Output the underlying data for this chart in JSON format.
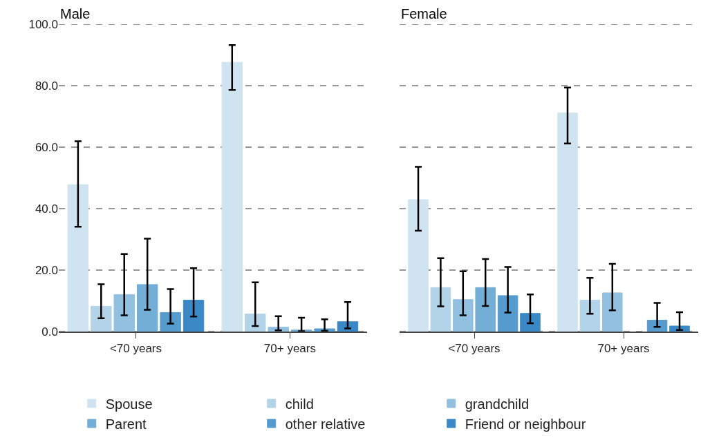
{
  "chart_data": [
    {
      "type": "bar",
      "title": "Male",
      "categories": [
        "<70 years",
        "70+ years"
      ],
      "ylim": [
        0,
        100
      ],
      "yticks": [
        {
          "value": 0,
          "label": "0.0"
        },
        {
          "value": 20,
          "label": "20.0"
        },
        {
          "value": 40,
          "label": "40.0"
        },
        {
          "value": 60,
          "label": "60.0"
        },
        {
          "value": 80,
          "label": "80.0"
        },
        {
          "value": 100,
          "label": "100.0"
        }
      ],
      "grid": "y",
      "legend": "bottom",
      "series": [
        {
          "name": "Spouse",
          "color": "#d0e3f0",
          "values": [
            47.8,
            87.6
          ],
          "errors": [
            [
              34.1,
              61.9
            ],
            [
              78.6,
              93.2
            ]
          ]
        },
        {
          "name": "child",
          "color": "#b3d3e9",
          "values": [
            8.2,
            5.7
          ],
          "errors": [
            [
              4.3,
              15.4
            ],
            [
              1.8,
              16.0
            ]
          ]
        },
        {
          "name": "grandchild",
          "color": "#91c0e0",
          "values": [
            12.0,
            1.4
          ],
          "errors": [
            [
              5.3,
              25.2
            ],
            [
              0.4,
              5.0
            ]
          ]
        },
        {
          "name": "Parent",
          "color": "#73aed6",
          "values": [
            15.3,
            0.5
          ],
          "errors": [
            [
              7.1,
              30.2
            ],
            [
              0.1,
              4.5
            ]
          ]
        },
        {
          "name": "other relative",
          "color": "#569bcd",
          "values": [
            6.2,
            0.9
          ],
          "errors": [
            [
              2.6,
              13.8
            ],
            [
              0.2,
              4.0
            ]
          ]
        },
        {
          "name": "Friend or neighbour",
          "color": "#3a88c5",
          "values": [
            10.2,
            3.2
          ],
          "errors": [
            [
              4.9,
              20.6
            ],
            [
              1.0,
              9.6
            ]
          ]
        }
      ]
    },
    {
      "type": "bar",
      "title": "Female",
      "categories": [
        "<70 years",
        "70+ years"
      ],
      "ylim": [
        0,
        100
      ],
      "yticks": [
        0,
        20,
        40,
        60,
        80,
        100
      ],
      "grid": "y",
      "tick_labels": "x",
      "series": [
        {
          "color": "#d0e3f0",
          "values": [
            42.9,
            71.1
          ],
          "errors": [
            [
              32.8,
              53.6
            ],
            [
              61.2,
              79.4
            ]
          ]
        },
        {
          "color": "#b3d3e9",
          "values": [
            14.3,
            10.2
          ],
          "errors": [
            [
              8.2,
              23.9
            ],
            [
              5.8,
              17.5
            ]
          ]
        },
        {
          "color": "#91c0e0",
          "values": [
            10.4,
            12.6
          ],
          "errors": [
            [
              5.3,
              19.6
            ],
            [
              6.9,
              22.0
            ]
          ]
        },
        {
          "color": "#73aed6",
          "values": [
            14.3,
            null
          ],
          "errors": [
            [
              8.3,
              23.6
            ],
            null
          ]
        },
        {
          "color": "#569bcd",
          "values": [
            11.7,
            3.7
          ],
          "errors": [
            [
              6.2,
              21.0
            ],
            [
              1.5,
              9.3
            ]
          ]
        },
        {
          "color": "#3a88c5",
          "values": [
            5.9,
            1.8
          ],
          "errors": [
            [
              2.7,
              12.1
            ],
            [
              0.5,
              6.3
            ]
          ]
        }
      ]
    }
  ]
}
